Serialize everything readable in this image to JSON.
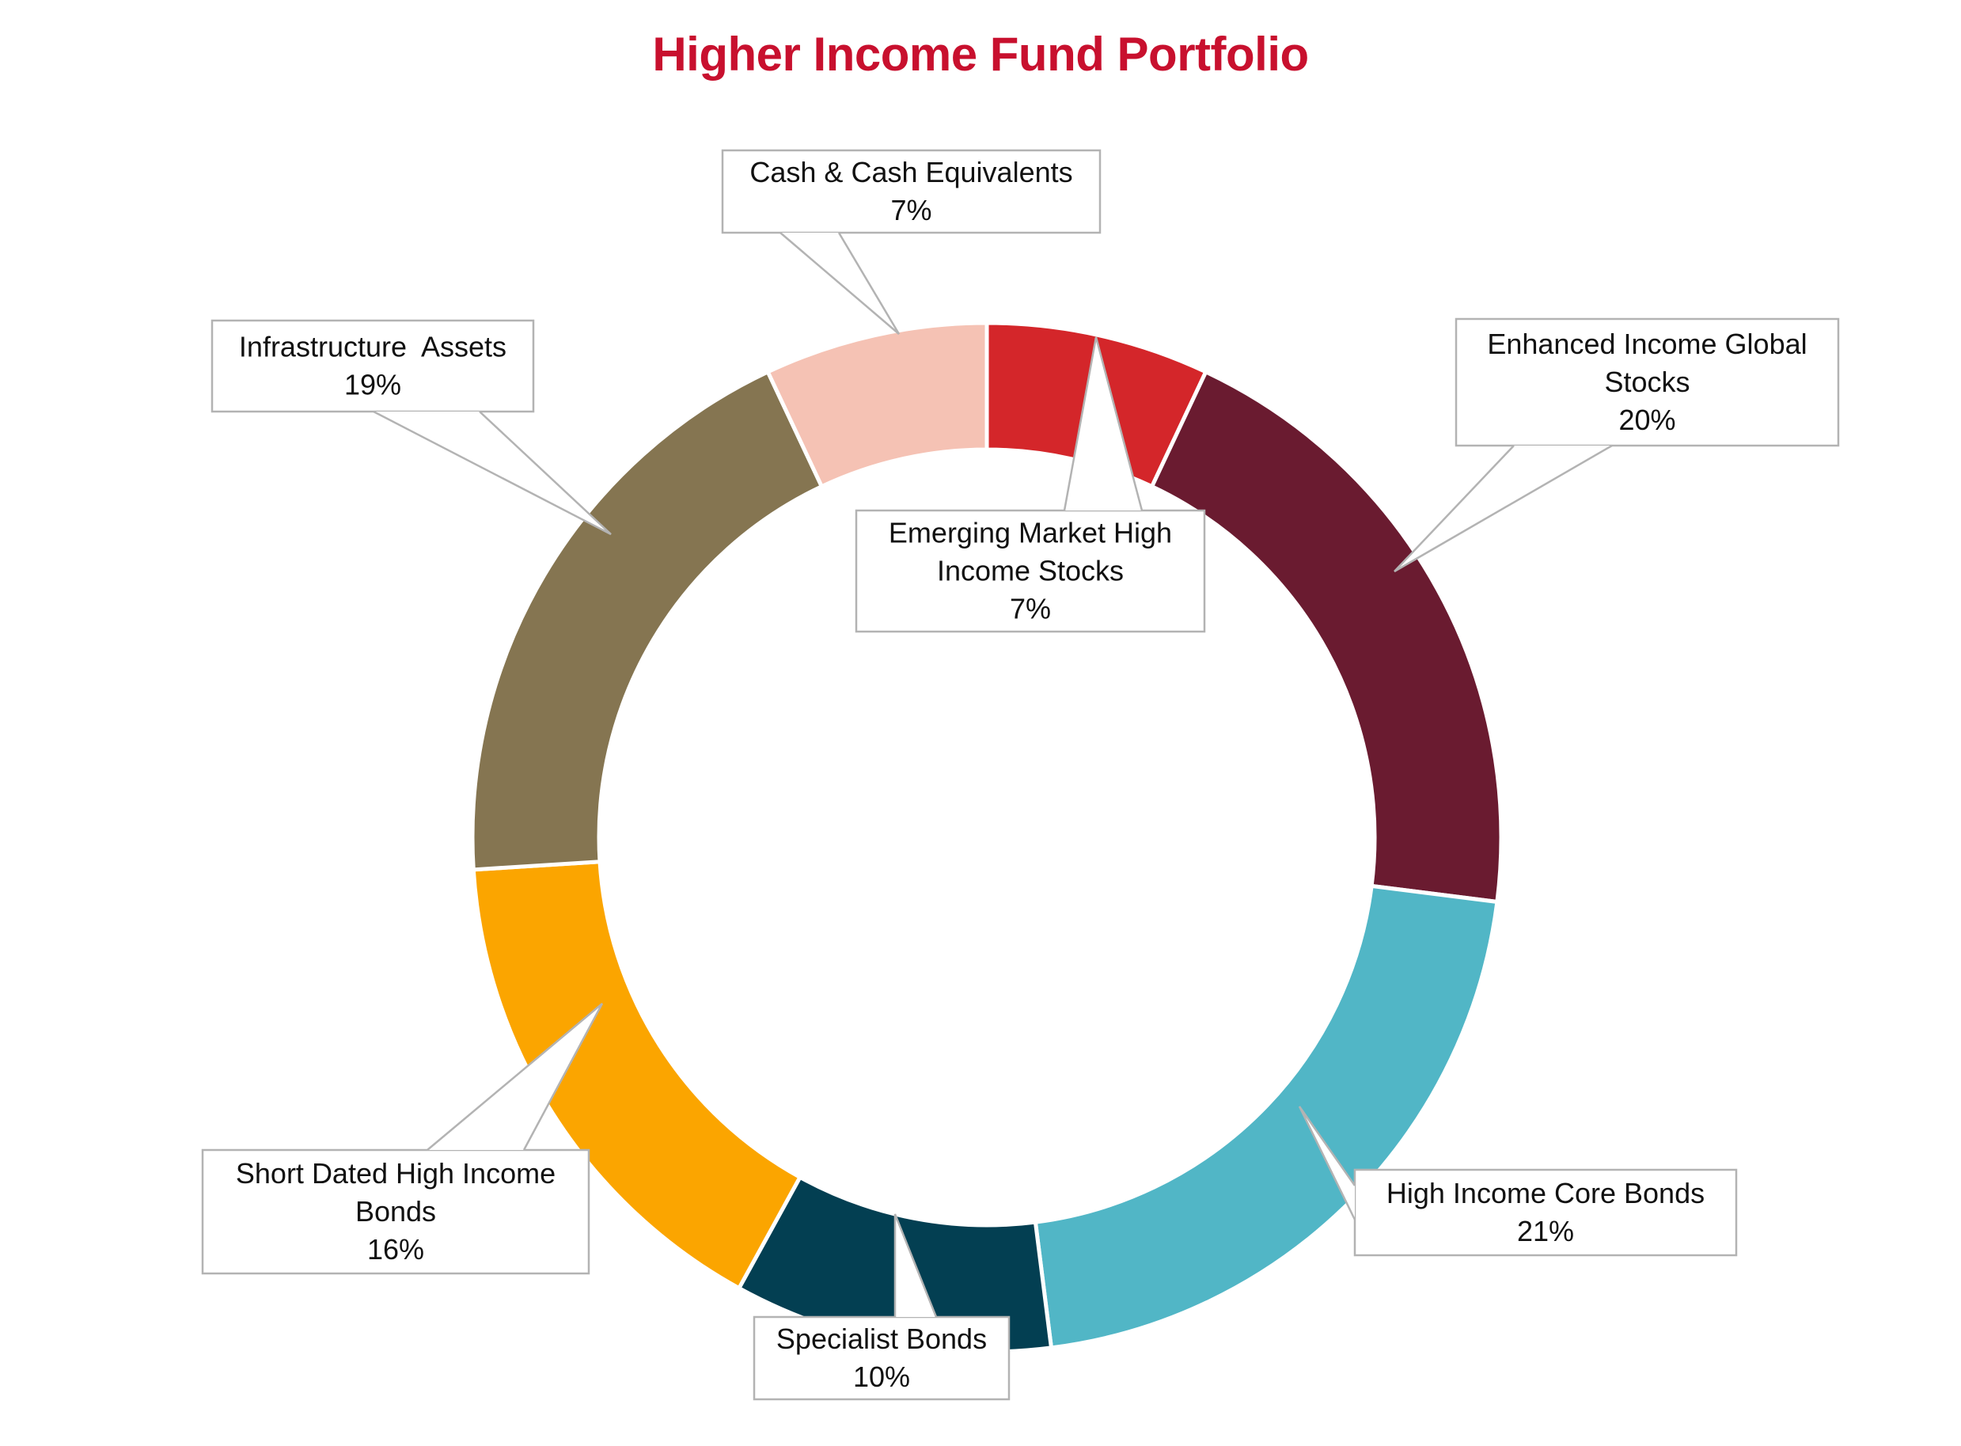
{
  "chart_data": {
    "type": "pie",
    "variant": "donut",
    "title": "Higher Income Fund Portfolio",
    "start_angle_deg": 0,
    "direction": "clockwise",
    "slices": [
      {
        "name": "Emerging Market High Income Stocks",
        "label_lines": [
          "Emerging Market High",
          "Income Stocks",
          "7%"
        ],
        "value": 7,
        "color": "#d4262a"
      },
      {
        "name": "Enhanced Income Global Stocks",
        "label_lines": [
          "Enhanced Income Global",
          "Stocks",
          "20%"
        ],
        "value": 20,
        "color": "#6a1b30"
      },
      {
        "name": "High Income Core Bonds",
        "label_lines": [
          "High Income Core Bonds",
          "21%"
        ],
        "value": 21,
        "color": "#51b6c6"
      },
      {
        "name": "Specialist Bonds",
        "label_lines": [
          "Specialist Bonds",
          "10%"
        ],
        "value": 10,
        "color": "#033f52"
      },
      {
        "name": "Short Dated High Income Bonds",
        "label_lines": [
          "Short Dated High Income",
          "Bonds",
          "16%"
        ],
        "value": 16,
        "color": "#fba500"
      },
      {
        "name": "Infrastructure Assets",
        "label_lines": [
          "Infrastructure  Assets",
          "19%"
        ],
        "value": 19,
        "color": "#857551"
      },
      {
        "name": "Cash & Cash Equivalents",
        "label_lines": [
          "Cash & Cash Equivalents",
          "7%"
        ],
        "value": 7,
        "color": "#f5c2b4"
      }
    ]
  }
}
